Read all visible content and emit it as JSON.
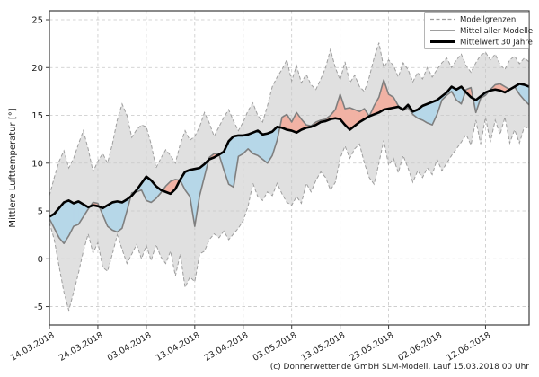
{
  "chart_data": {
    "type": "line",
    "title": "",
    "ylabel": "Mittlere Lufttemperatur [°]",
    "xlabel": "",
    "caption": "(c) Donnerwetter.de GmbH SLM-Modell, Lauf 15.03.2018 00 Uhr",
    "grid": true,
    "xlim": [
      0,
      99
    ],
    "ylim": [
      -6.92,
      25.94
    ],
    "y_ticks": [
      -5,
      0,
      5,
      10,
      15,
      20,
      25
    ],
    "x_tick_positions": [
      0,
      10,
      20,
      30,
      40,
      50,
      60,
      70,
      80,
      90
    ],
    "x_tick_labels": [
      "14.03.2018",
      "24.03.2018",
      "03.04.2018",
      "13.04.2018",
      "23.04.2018",
      "03.05.2018",
      "13.05.2018",
      "23.05.2018",
      "02.06.2018",
      "12.06.2018"
    ],
    "x_unit": "days since 14.03.2018",
    "legend": {
      "position": "upper right",
      "entries": [
        {
          "label": "Modellgrenzen",
          "style": "dashed-gray"
        },
        {
          "label": "Mittel aller Modelle",
          "style": "solid-gray"
        },
        {
          "label": "Mittelwert 30 Jahre",
          "style": "solid-black-thick"
        }
      ]
    },
    "series": {
      "upper_bound": {
        "name": "Modellgrenzen (oben)",
        "values": [
          6.6,
          8.5,
          10.2,
          11.3,
          9.5,
          10.5,
          12.0,
          13.4,
          11.5,
          9.1,
          10.2,
          11.0,
          10.0,
          12.0,
          14.5,
          16.2,
          15.0,
          12.7,
          13.5,
          14.0,
          13.8,
          12.0,
          9.5,
          10.5,
          11.4,
          10.8,
          10.0,
          12.0,
          13.4,
          12.4,
          12.8,
          13.8,
          15.3,
          14.2,
          12.8,
          13.8,
          14.8,
          15.6,
          14.4,
          13.4,
          14.3,
          15.5,
          16.3,
          15.0,
          14.3,
          16.0,
          18.0,
          19.0,
          19.8,
          20.8,
          18.6,
          20.2,
          18.4,
          19.3,
          18.2,
          17.7,
          18.8,
          20.0,
          21.9,
          20.0,
          18.7,
          20.6,
          18.4,
          19.2,
          18.0,
          17.5,
          19.0,
          21.0,
          22.6,
          20.0,
          20.8,
          20.2,
          19.0,
          20.5,
          19.8,
          18.5,
          19.5,
          18.8,
          20.0,
          19.0,
          19.8,
          20.5,
          21.0,
          20.0,
          20.8,
          21.4,
          20.2,
          19.5,
          20.5,
          21.3,
          21.6,
          20.8,
          21.4,
          20.3,
          19.8,
          20.8,
          21.2,
          20.4,
          21.0,
          20.6
        ]
      },
      "lower_bound": {
        "name": "Modellgrenzen (unten)",
        "values": [
          3.8,
          2.0,
          -0.8,
          -3.5,
          -5.4,
          -3.5,
          -1.5,
          0.8,
          2.6,
          0.6,
          1.7,
          -0.9,
          -1.3,
          0.5,
          2.5,
          1.0,
          -0.5,
          0.5,
          1.5,
          0.0,
          1.4,
          -0.2,
          1.5,
          0.2,
          -0.5,
          0.8,
          -1.8,
          0.5,
          -3.0,
          -1.9,
          -2.4,
          0.5,
          0.8,
          2.0,
          2.6,
          2.2,
          2.9,
          2.0,
          2.6,
          3.2,
          4.0,
          5.5,
          7.9,
          6.5,
          6.1,
          7.0,
          6.6,
          7.9,
          6.8,
          5.9,
          5.6,
          6.5,
          5.8,
          7.9,
          7.0,
          8.2,
          9.1,
          8.5,
          7.2,
          8.0,
          10.5,
          11.8,
          10.5,
          11.5,
          12.0,
          10.0,
          8.5,
          7.8,
          10.0,
          12.4,
          9.8,
          10.5,
          9.0,
          10.8,
          9.5,
          8.0,
          9.2,
          8.5,
          9.5,
          8.8,
          10.4,
          9.2,
          10.0,
          10.8,
          11.5,
          12.2,
          13.0,
          11.9,
          14.5,
          12.0,
          14.8,
          12.2,
          14.5,
          13.0,
          14.8,
          12.1,
          13.5,
          12.1,
          13.8,
          13.6
        ]
      },
      "model_mean": {
        "name": "Mittel aller Modelle",
        "values": [
          4.2,
          3.2,
          2.2,
          1.6,
          2.4,
          3.4,
          3.6,
          4.4,
          5.2,
          5.9,
          5.8,
          4.6,
          3.4,
          3.0,
          2.8,
          3.2,
          5.0,
          6.9,
          7.0,
          7.2,
          6.1,
          5.9,
          6.3,
          6.9,
          7.6,
          8.1,
          8.3,
          8.2,
          7.2,
          6.5,
          3.4,
          6.6,
          8.6,
          10.6,
          11.0,
          10.9,
          9.3,
          7.8,
          7.5,
          10.7,
          11.0,
          11.5,
          11.0,
          10.8,
          10.4,
          10.0,
          10.8,
          12.4,
          14.8,
          15.1,
          14.3,
          15.3,
          14.6,
          14.0,
          13.9,
          14.3,
          14.5,
          14.6,
          15.0,
          15.6,
          17.2,
          15.7,
          15.8,
          15.6,
          15.4,
          15.7,
          14.9,
          16.0,
          16.9,
          18.7,
          17.2,
          16.9,
          16.0,
          15.5,
          15.8,
          15.1,
          14.7,
          14.5,
          14.2,
          14.0,
          15.1,
          16.6,
          17.1,
          17.5,
          16.6,
          16.2,
          17.7,
          17.9,
          15.3,
          16.8,
          17.1,
          17.7,
          18.2,
          18.3,
          18.0,
          17.7,
          18.0,
          17.2,
          16.6,
          16.1
        ]
      },
      "mean_30y": {
        "name": "Mittelwert 30 Jahre",
        "values": [
          4.4,
          4.7,
          5.3,
          5.9,
          6.1,
          5.8,
          6.0,
          5.7,
          5.4,
          5.6,
          5.5,
          5.3,
          5.6,
          5.9,
          6.0,
          5.9,
          6.2,
          6.6,
          7.2,
          7.9,
          8.6,
          8.2,
          7.6,
          7.2,
          7.0,
          6.8,
          7.3,
          8.3,
          9.1,
          9.3,
          9.4,
          9.5,
          9.9,
          10.4,
          10.6,
          10.9,
          11.2,
          12.3,
          12.8,
          12.9,
          12.9,
          13.0,
          13.2,
          13.4,
          13.0,
          13.1,
          13.3,
          13.8,
          13.7,
          13.5,
          13.4,
          13.2,
          13.5,
          13.7,
          13.8,
          14.0,
          14.3,
          14.4,
          14.6,
          14.7,
          14.6,
          14.0,
          13.5,
          13.9,
          14.3,
          14.6,
          14.9,
          15.1,
          15.3,
          15.6,
          15.7,
          15.8,
          15.9,
          15.6,
          16.1,
          15.4,
          15.6,
          16.0,
          16.2,
          16.4,
          16.6,
          17.0,
          17.4,
          18.0,
          17.7,
          18.0,
          17.4,
          16.9,
          16.6,
          17.0,
          17.4,
          17.6,
          17.7,
          17.6,
          17.4,
          17.7,
          18.0,
          18.3,
          18.2,
          18.0
        ]
      }
    },
    "colors": {
      "band_fill": "#e0e0e0",
      "band_border": "#9e9e9e",
      "grid": "#c8c8c8",
      "model_mean_line": "#7f7f7f",
      "mean_30y_line": "#000000",
      "fill_above_mean": "#f1b2a4",
      "fill_below_mean": "#b6d7e8",
      "axes_border": "#3c3c3c"
    }
  }
}
